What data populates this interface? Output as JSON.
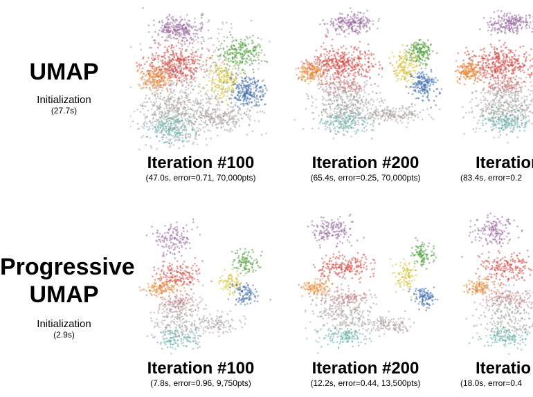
{
  "rows": [
    {
      "method_lines": [
        "UMAP"
      ],
      "init_label": "Initialization",
      "init_time": "(27.7s)",
      "panels": [
        {
          "iteration": "Iteration #100",
          "stats": "(47.0s, error=0.71, 70,000pts)"
        },
        {
          "iteration": "Iteration #200",
          "stats": "(65.4s, error=0.25, 70,000pts)"
        },
        {
          "iteration": "Iteration",
          "stats": "(83.4s, error=0.2"
        }
      ]
    },
    {
      "method_lines": [
        "Progressive",
        "UMAP"
      ],
      "init_label": "Initialization",
      "init_time": "(2.9s)",
      "panels": [
        {
          "iteration": "Iteration #100",
          "stats": "(7.8s, error=0.96, 9,750pts)"
        },
        {
          "iteration": "Iteration #200",
          "stats": "(12.2s, error=0.44, 13,500pts)"
        },
        {
          "iteration": "Iteratio",
          "stats": "(18.0s, error=0.4"
        }
      ]
    }
  ],
  "cluster_colors": {
    "purple": "#9b6aa0",
    "red": "#d24a45",
    "orange": "#e88a35",
    "yellow": "#d6c23a",
    "green": "#4e9f3d",
    "blue": "#3f6fae",
    "teal": "#5fb0a8",
    "gray": "#a8a4a2",
    "pink": "#c9858a"
  }
}
